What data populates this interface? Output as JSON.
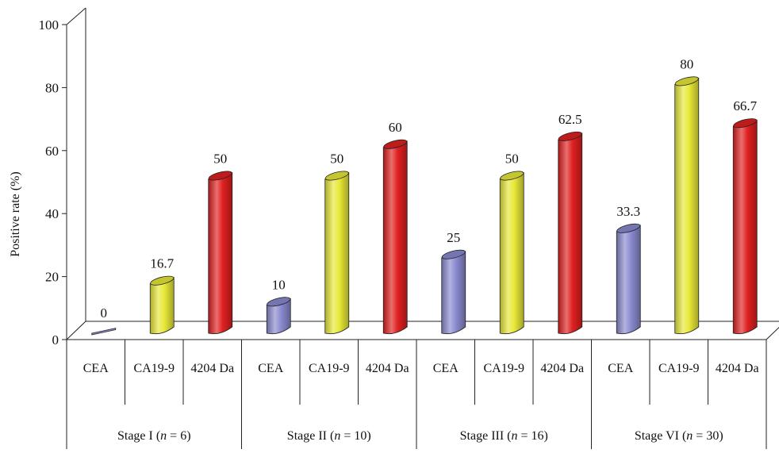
{
  "chart_data": {
    "type": "bar",
    "title": "",
    "xlabel": "",
    "ylabel": "Positive rate (%)",
    "ylim": [
      0,
      100
    ],
    "yticks": [
      0,
      20,
      40,
      60,
      80,
      100
    ],
    "grid": false,
    "legend": "none",
    "categories": [
      "CEA",
      "CA19-9",
      "4204 Da"
    ],
    "category_colors": {
      "CEA": "#8a8ad0",
      "CA19-9": "#e8e838",
      "4204 Da": "#e02020"
    },
    "groups": [
      {
        "label_prefix": "Stage I (",
        "label_n": "n",
        "label_suffix": " = 6)",
        "values": [
          0,
          16.7,
          50
        ],
        "value_labels": [
          "0",
          "16.7",
          "50"
        ]
      },
      {
        "label_prefix": "Stage II (",
        "label_n": "n",
        "label_suffix": " = 10)",
        "values": [
          10,
          50,
          60
        ],
        "value_labels": [
          "10",
          "50",
          "60"
        ]
      },
      {
        "label_prefix": "Stage III (",
        "label_n": "n",
        "label_suffix": " = 16)",
        "values": [
          25,
          50,
          62.5
        ],
        "value_labels": [
          "25",
          "50",
          "62.5"
        ]
      },
      {
        "label_prefix": "Stage VI (",
        "label_n": "n",
        "label_suffix": " = 30)",
        "values": [
          33.3,
          80,
          66.7
        ],
        "value_labels": [
          "33.3",
          "80",
          "66.7"
        ]
      }
    ]
  }
}
